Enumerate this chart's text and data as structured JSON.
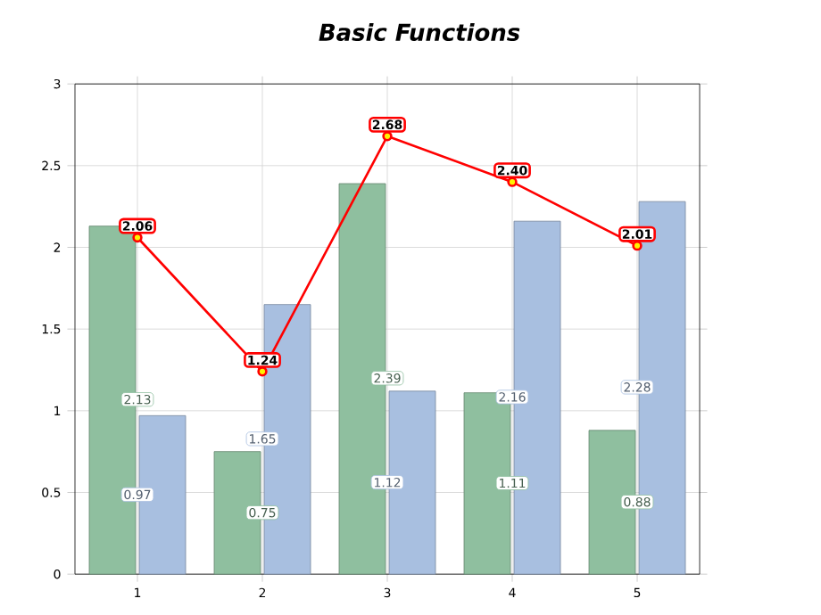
{
  "chart_data": {
    "type": "bar",
    "title": "Basic Functions",
    "categories": [
      "1",
      "2",
      "3",
      "4",
      "5"
    ],
    "series": [
      {
        "color": "#8fbf9f",
        "values": [
          2.13,
          0.75,
          2.39,
          1.11,
          0.88
        ],
        "value_labels": [
          "2.13",
          "0.75",
          "2.39",
          "1.11",
          "0.88"
        ]
      },
      {
        "color": "#a8bfe0",
        "values": [
          0.97,
          1.65,
          1.12,
          2.16,
          2.28
        ],
        "value_labels": [
          "0.97",
          "1.65",
          "1.12",
          "2.16",
          "2.28"
        ]
      },
      {
        "type": "line",
        "color": "#ff0000",
        "marker": "circle",
        "values": [
          2.06,
          1.24,
          2.68,
          2.4,
          2.01
        ],
        "value_labels": [
          "2.06",
          "1.24",
          "2.68",
          "2.40",
          "2.01"
        ]
      }
    ],
    "ylim": [
      0,
      3
    ],
    "yticks": [
      0,
      0.5,
      1,
      1.5,
      2,
      2.5,
      3
    ],
    "grid": true
  }
}
